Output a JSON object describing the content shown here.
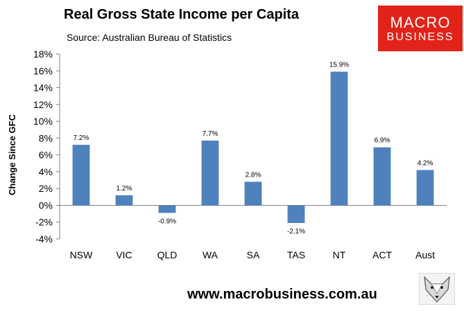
{
  "header": {
    "title": "Real Gross State Income per Capita",
    "subtitle": "Source: Australian Bureau of Statistics"
  },
  "logo": {
    "line1": "MACRO",
    "line2": "BUSINESS",
    "color": "#e2231a"
  },
  "footer": {
    "url": "www.macrobusiness.com.au",
    "fox_icon": "fox-mascot-icon"
  },
  "chart_data": {
    "type": "bar",
    "title": "Real Gross State Income per Capita",
    "subtitle": "Source: Australian Bureau of Statistics",
    "xlabel": "",
    "ylabel": "Change Since GFC",
    "categories": [
      "NSW",
      "VIC",
      "QLD",
      "WA",
      "SA",
      "TAS",
      "NT",
      "ACT",
      "Aust"
    ],
    "values": [
      7.2,
      1.2,
      -0.9,
      7.7,
      2.8,
      -2.1,
      15.9,
      6.9,
      4.2
    ],
    "data_labels": [
      "7.2%",
      "1.2%",
      "-0.9%",
      "7.7%",
      "2.8%",
      "-2.1%",
      "15.9%",
      "6.9%",
      "4.2%"
    ],
    "ylim": [
      -4,
      18
    ],
    "yticks": [
      -4,
      -2,
      0,
      2,
      4,
      6,
      8,
      10,
      12,
      14,
      16,
      18
    ],
    "ytick_labels": [
      "-4%",
      "-2%",
      "0%",
      "2%",
      "4%",
      "6%",
      "8%",
      "10%",
      "12%",
      "14%",
      "16%",
      "18%"
    ],
    "bar_color": "#4f81bd",
    "grid": false,
    "legend": "none"
  }
}
